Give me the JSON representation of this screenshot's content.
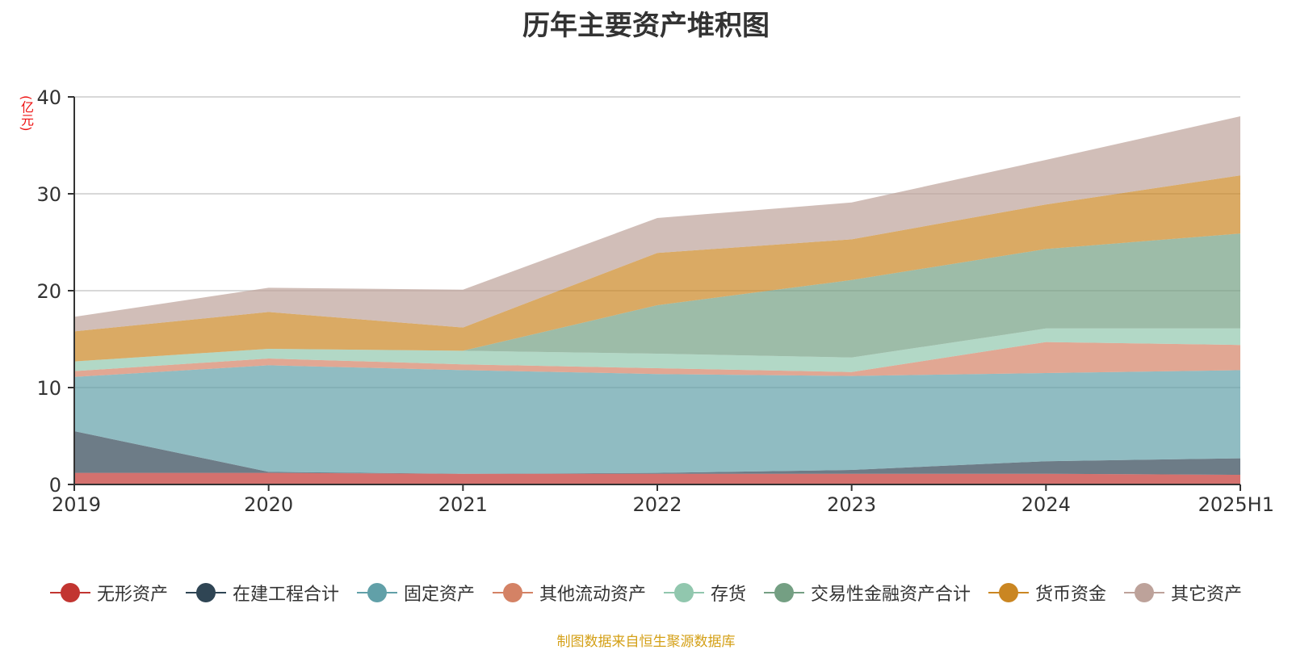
{
  "chart_data": {
    "type": "area",
    "stacked": true,
    "title": "历年主要资产堆积图",
    "unit_label": "(亿元)",
    "categories": [
      "2019",
      "2020",
      "2021",
      "2022",
      "2023",
      "2024",
      "2025H1"
    ],
    "ylim": [
      0,
      40
    ],
    "yticks": [
      0,
      10,
      20,
      30,
      40
    ],
    "grid": true,
    "legend_position": "bottom",
    "series": [
      {
        "name": "无形资产",
        "color": "#c23531",
        "values": [
          1.2,
          1.2,
          1.1,
          1.1,
          1.1,
          1.1,
          1.0
        ]
      },
      {
        "name": "在建工程合计",
        "color": "#2f4554",
        "values": [
          4.3,
          0.1,
          0.0,
          0.1,
          0.4,
          1.3,
          1.7
        ]
      },
      {
        "name": "固定资产",
        "color": "#61a0a8",
        "values": [
          5.6,
          11.0,
          10.7,
          10.2,
          9.7,
          9.1,
          9.1
        ]
      },
      {
        "name": "其他流动资产",
        "color": "#d48265",
        "values": [
          0.6,
          0.7,
          0.6,
          0.6,
          0.4,
          3.2,
          2.6
        ]
      },
      {
        "name": "存货",
        "color": "#91c7ae",
        "values": [
          1.0,
          1.0,
          1.4,
          1.5,
          1.5,
          1.4,
          1.7
        ]
      },
      {
        "name": "交易性金融资产合计",
        "color": "#749f83",
        "values": [
          0.0,
          0.0,
          0.0,
          5.0,
          8.0,
          8.2,
          9.8
        ]
      },
      {
        "name": "货币资金",
        "color": "#ca8622",
        "values": [
          3.1,
          3.8,
          2.4,
          5.4,
          4.2,
          4.6,
          6.0
        ]
      },
      {
        "name": "其它资产",
        "color": "#bda29a",
        "values": [
          1.5,
          2.5,
          3.9,
          3.6,
          3.8,
          4.6,
          6.1
        ]
      }
    ]
  },
  "footer": {
    "source": "制图数据来自恒生聚源数据库"
  }
}
